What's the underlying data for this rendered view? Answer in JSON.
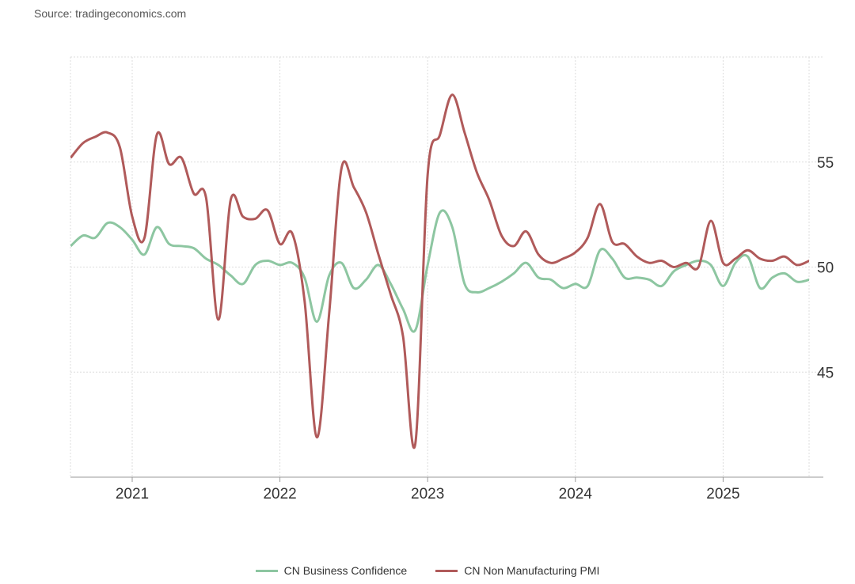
{
  "source": "Source: tradingeconomics.com",
  "chart_data": {
    "type": "line",
    "title": "",
    "xlabel": "",
    "ylabel": "",
    "x_start": "2020-08",
    "x_frequency": "monthly",
    "xticks": [
      "2021",
      "2022",
      "2023",
      "2024",
      "2025"
    ],
    "yticks": [
      45,
      50,
      55
    ],
    "ylim": [
      40,
      60
    ],
    "grid": true,
    "y_axis_side": "right",
    "legend_position": "bottom",
    "series": [
      {
        "name": "CN Business Confidence",
        "color": "#8dc6a1",
        "values": [
          51.0,
          51.5,
          51.4,
          52.1,
          51.9,
          51.3,
          50.6,
          51.9,
          51.1,
          51.0,
          50.9,
          50.4,
          50.1,
          49.6,
          49.2,
          50.1,
          50.3,
          50.1,
          50.2,
          49.5,
          47.4,
          49.6,
          50.2,
          49.0,
          49.4,
          50.1,
          49.2,
          48.0,
          47.0,
          50.1,
          52.6,
          51.9,
          49.2,
          48.8,
          49.0,
          49.3,
          49.7,
          50.2,
          49.5,
          49.4,
          49.0,
          49.2,
          49.1,
          50.8,
          50.4,
          49.5,
          49.5,
          49.4,
          49.1,
          49.8,
          50.1,
          50.3,
          50.1,
          49.1,
          50.2,
          50.5,
          49.0,
          49.5,
          49.7,
          49.3,
          49.4
        ]
      },
      {
        "name": "CN Non Manufacturing PMI",
        "color": "#b05a5a",
        "values": [
          55.2,
          55.9,
          56.2,
          56.4,
          55.7,
          52.4,
          51.4,
          56.3,
          54.9,
          55.2,
          53.5,
          53.3,
          47.5,
          53.2,
          52.4,
          52.3,
          52.7,
          51.1,
          51.6,
          48.4,
          41.9,
          47.8,
          54.7,
          53.8,
          52.6,
          50.6,
          48.7,
          46.7,
          41.6,
          54.4,
          56.3,
          58.2,
          56.4,
          54.5,
          53.2,
          51.5,
          51.0,
          51.7,
          50.6,
          50.2,
          50.4,
          50.7,
          51.4,
          53.0,
          51.2,
          51.1,
          50.5,
          50.2,
          50.3,
          50.0,
          50.2,
          50.0,
          52.2,
          50.2,
          50.4,
          50.8,
          50.4,
          50.3,
          50.5,
          50.1,
          50.3
        ]
      }
    ]
  }
}
